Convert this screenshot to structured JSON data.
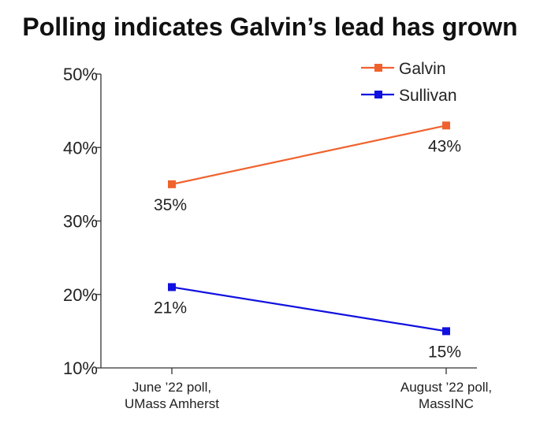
{
  "chart_data": {
    "type": "line",
    "title": "Polling indicates Galvin’s lead has grown",
    "categories": [
      [
        "June ’22 poll,",
        "UMass Amherst"
      ],
      [
        "August ’22 poll,",
        "MassINC"
      ]
    ],
    "series": [
      {
        "name": "Galvin",
        "values": [
          35,
          43
        ],
        "labels": [
          "35%",
          "43%"
        ],
        "color": "#f0622d",
        "label_position": [
          "below",
          "below"
        ]
      },
      {
        "name": "Sullivan",
        "values": [
          21,
          15
        ],
        "labels": [
          "21%",
          "15%"
        ],
        "color": "#1010e0",
        "label_position": [
          "below",
          "below"
        ]
      }
    ],
    "ylim": [
      10,
      50
    ],
    "yticks": [
      10,
      20,
      30,
      40,
      50
    ],
    "ytick_labels": [
      "10%",
      "20%",
      "30%",
      "40%",
      "50%"
    ],
    "xlabel": "",
    "ylabel": "",
    "grid": false,
    "legend": "top-right"
  }
}
